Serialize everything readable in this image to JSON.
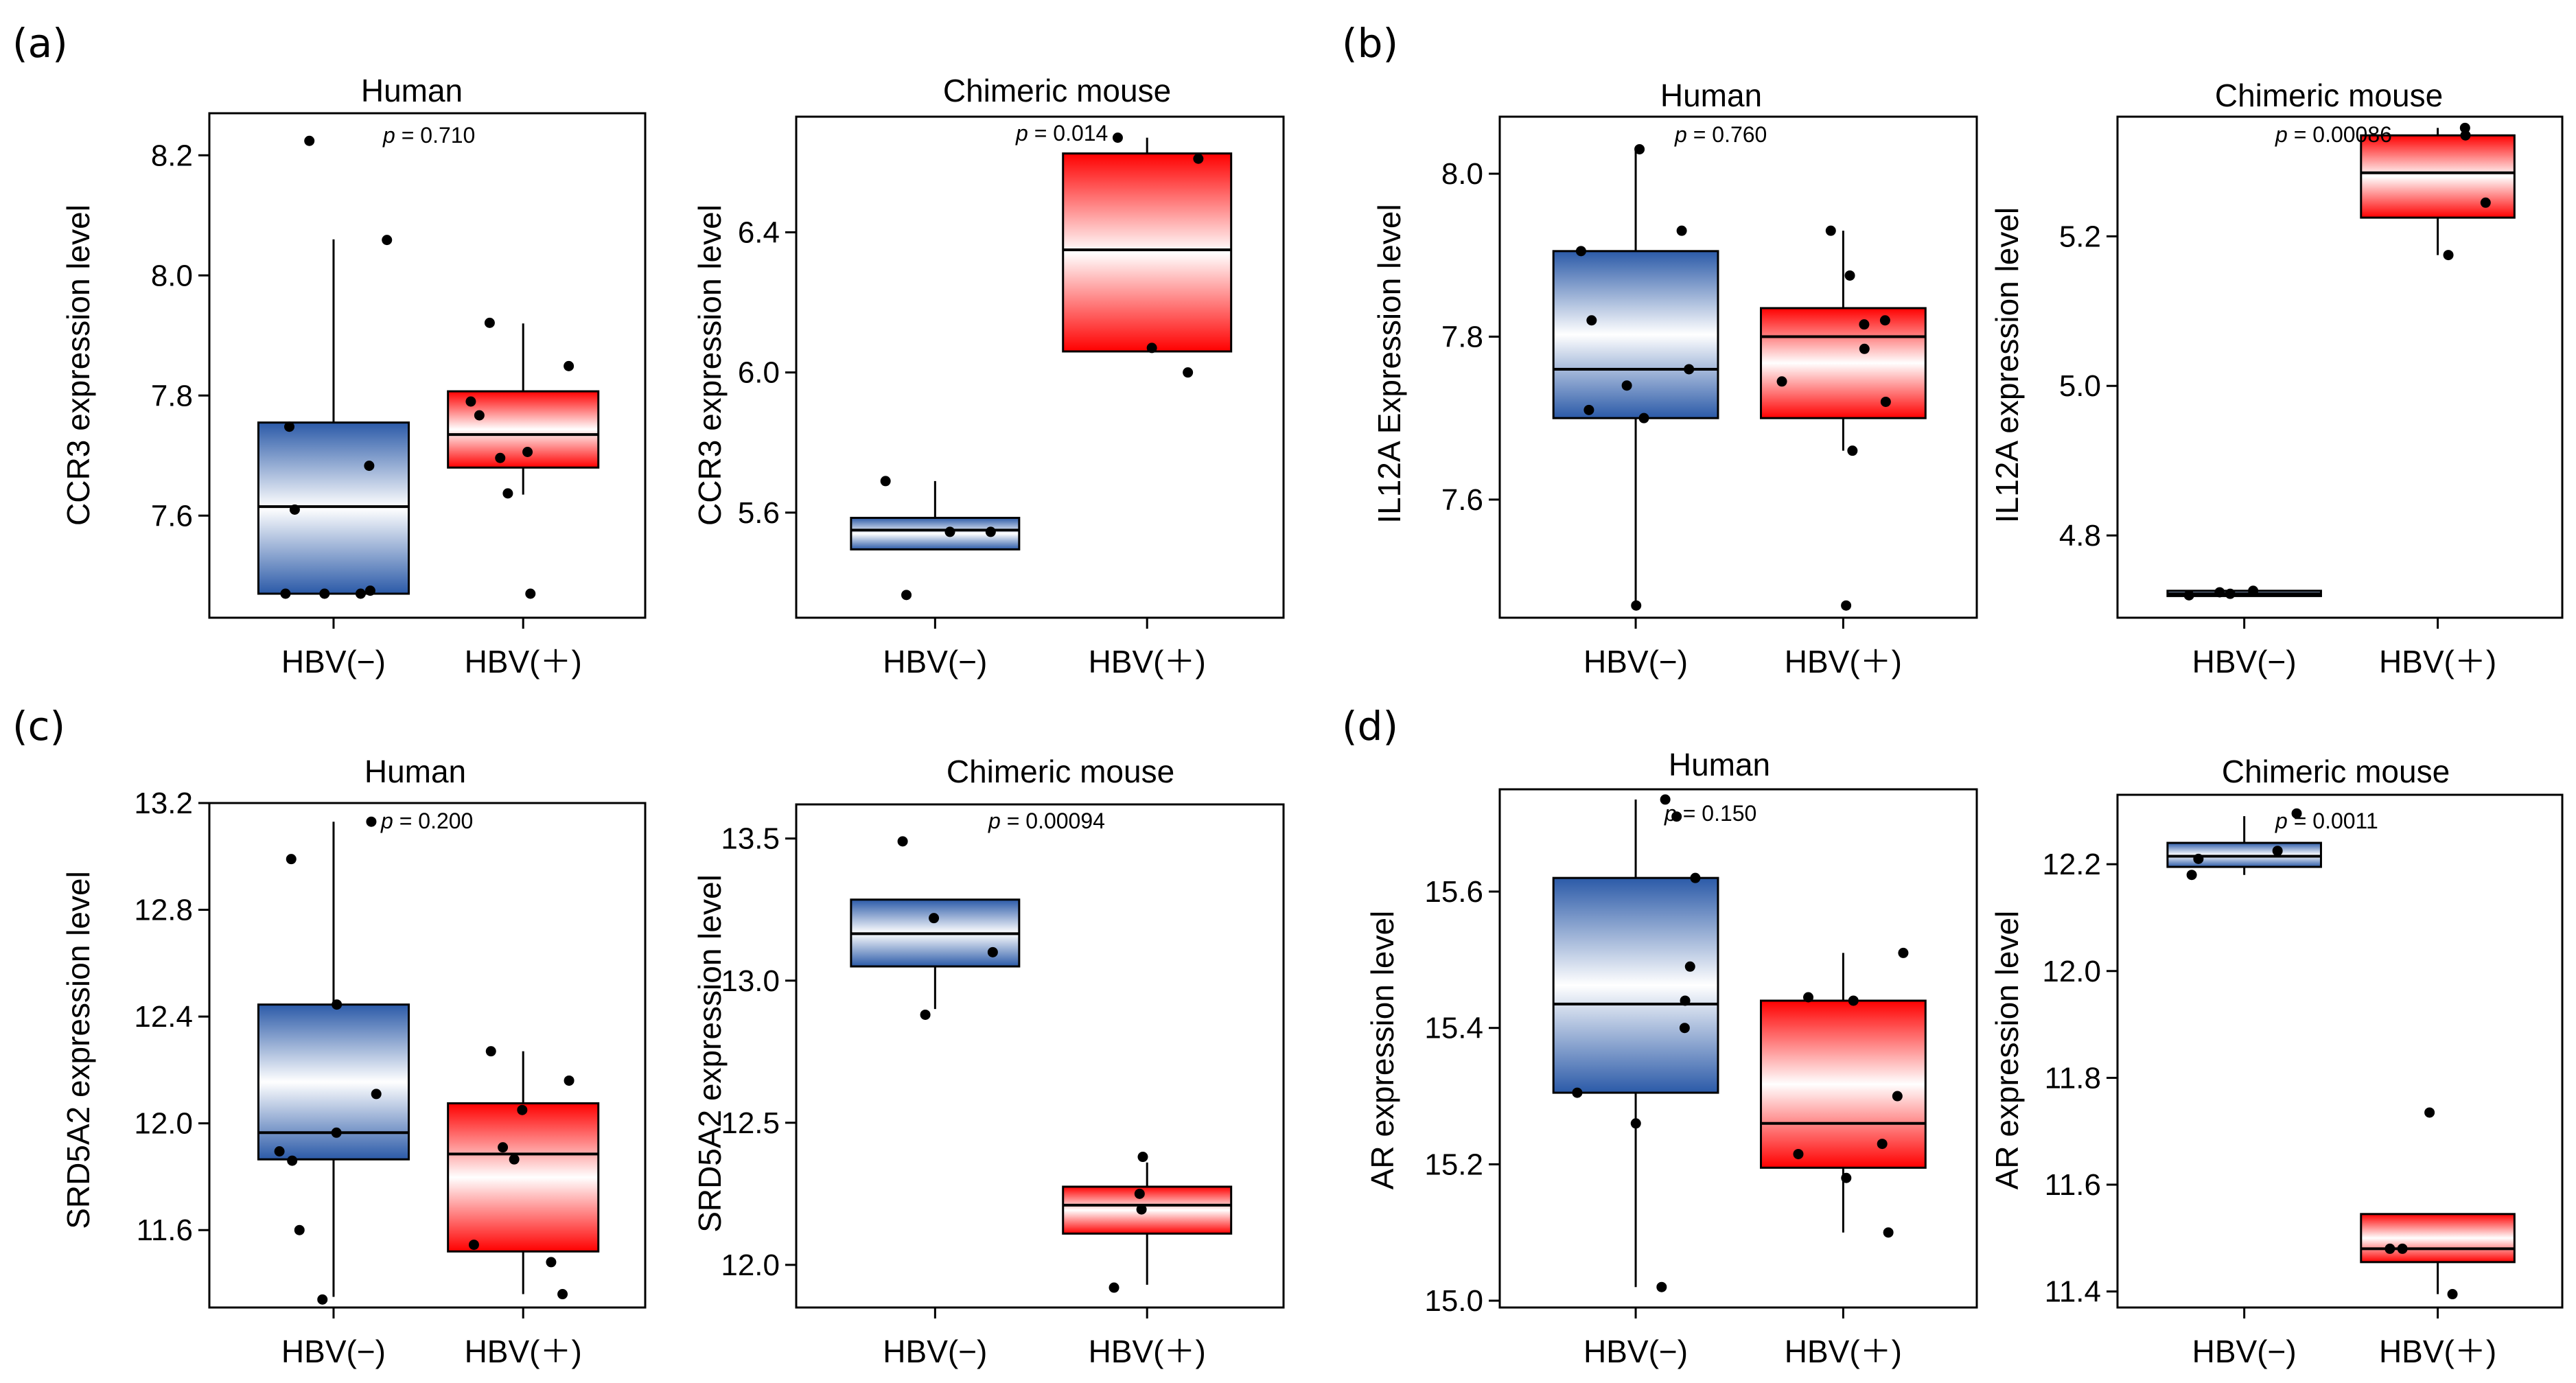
{
  "colors": {
    "negative_box_edge": "#2B5AA8",
    "negative_box_center": "#FFFFFF",
    "positive_box_edge": "#FF0000",
    "positive_box_center": "#FFFFFF",
    "axis": "#000000",
    "points": "#000000"
  },
  "chart_data": [
    {
      "id": "a_human",
      "panel": "(a)",
      "type": "boxplot",
      "title": "Human",
      "ylabel": "CCR3 expression level",
      "categories": [
        "HBV(−)",
        "HBV(＋)"
      ],
      "ylim": [
        7.43,
        8.27
      ],
      "yticks": [
        7.6,
        7.8,
        8.0,
        8.2
      ],
      "ytick_labels": [
        "7.6",
        "7.8",
        "8.0",
        "8.2"
      ],
      "p_label": "p",
      "p_text": " = 0.710",
      "series": [
        {
          "name": "HBV(−)",
          "q1": 7.47,
          "median": 7.615,
          "q3": 7.755,
          "whisker_low": 7.47,
          "whisker_high": 8.06,
          "points": [
            7.47,
            7.47,
            7.47,
            7.475,
            7.61,
            7.683,
            7.748,
            8.059,
            8.224
          ]
        },
        {
          "name": "HBV(＋)",
          "q1": 7.68,
          "median": 7.735,
          "q3": 7.807,
          "whisker_low": 7.635,
          "whisker_high": 7.92,
          "points": [
            7.47,
            7.637,
            7.696,
            7.706,
            7.767,
            7.79,
            7.849,
            7.921
          ]
        }
      ]
    },
    {
      "id": "a_mouse",
      "panel": "",
      "type": "boxplot",
      "title": "Chimeric mouse",
      "ylabel": "CCR3 expression level",
      "categories": [
        "HBV(−)",
        "HBV(＋)"
      ],
      "ylim": [
        5.3,
        6.73
      ],
      "yticks": [
        5.6,
        6.0,
        6.4
      ],
      "ytick_labels": [
        "5.6",
        "6.0",
        "6.4"
      ],
      "p_label": "p",
      "p_text": " = 0.014",
      "series": [
        {
          "name": "HBV(−)",
          "q1": 5.495,
          "median": 5.55,
          "q3": 5.585,
          "whisker_low": 5.495,
          "whisker_high": 5.69,
          "points": [
            5.365,
            5.545,
            5.545,
            5.69
          ]
        },
        {
          "name": "HBV(＋)",
          "q1": 6.06,
          "median": 6.35,
          "q3": 6.625,
          "whisker_low": 6.06,
          "whisker_high": 6.67,
          "points": [
            6.0,
            6.07,
            6.61,
            6.67
          ]
        }
      ]
    },
    {
      "id": "b_human",
      "panel": "(b)",
      "type": "boxplot",
      "title": "Human",
      "ylabel": "IL12A Expression level",
      "categories": [
        "HBV(−)",
        "HBV(＋)"
      ],
      "ylim": [
        7.455,
        8.07
      ],
      "yticks": [
        7.6,
        7.8,
        8.0
      ],
      "ytick_labels": [
        "7.6",
        "7.8",
        "8.0"
      ],
      "p_label": "p",
      "p_text": " = 0.760",
      "series": [
        {
          "name": "HBV(−)",
          "q1": 7.7,
          "median": 7.76,
          "q3": 7.905,
          "whisker_low": 7.47,
          "whisker_high": 8.03,
          "points": [
            7.47,
            7.7,
            7.71,
            7.74,
            7.76,
            7.82,
            7.905,
            7.93,
            8.03
          ]
        },
        {
          "name": "HBV(＋)",
          "q1": 7.7,
          "median": 7.8,
          "q3": 7.835,
          "whisker_low": 7.66,
          "whisker_high": 7.93,
          "points": [
            7.47,
            7.66,
            7.72,
            7.745,
            7.785,
            7.815,
            7.82,
            7.875,
            7.93
          ]
        }
      ]
    },
    {
      "id": "b_mouse",
      "panel": "",
      "type": "boxplot",
      "title": "Chimeric mouse",
      "ylabel": "IL12A expression level",
      "categories": [
        "HBV(−)",
        "HBV(＋)"
      ],
      "ylim": [
        4.69,
        5.36
      ],
      "yticks": [
        4.8,
        5.0,
        5.2
      ],
      "ytick_labels": [
        "4.8",
        "5.0",
        "5.2"
      ],
      "p_label": "p",
      "p_text": " = 0.00086",
      "series": [
        {
          "name": "HBV(−)",
          "q1": 4.719,
          "median": 4.722,
          "q3": 4.726,
          "whisker_low": 4.719,
          "whisker_high": 4.726,
          "points": [
            4.72,
            4.722,
            4.724,
            4.726
          ]
        },
        {
          "name": "HBV(＋)",
          "q1": 5.225,
          "median": 5.285,
          "q3": 5.335,
          "whisker_low": 5.175,
          "whisker_high": 5.345,
          "points": [
            5.175,
            5.245,
            5.335,
            5.345
          ]
        }
      ]
    },
    {
      "id": "c_human",
      "panel": "(c)",
      "type": "boxplot",
      "title": "Human",
      "ylabel": "SRD5A2 expression level",
      "categories": [
        "HBV(−)",
        "HBV(＋)"
      ],
      "ylim": [
        11.31,
        13.2
      ],
      "yticks": [
        11.6,
        12.0,
        12.4,
        12.8,
        13.2
      ],
      "ytick_labels": [
        "11.6",
        "12.0",
        "12.4",
        "12.8",
        "13.2"
      ],
      "p_label": "p",
      "p_text": " = 0.200",
      "series": [
        {
          "name": "HBV(−)",
          "q1": 11.865,
          "median": 11.965,
          "q3": 12.445,
          "whisker_low": 11.35,
          "whisker_high": 13.13,
          "points": [
            11.34,
            11.6,
            11.86,
            11.895,
            11.965,
            12.11,
            12.445,
            12.99,
            13.13
          ]
        },
        {
          "name": "HBV(＋)",
          "q1": 11.52,
          "median": 11.885,
          "q3": 12.075,
          "whisker_low": 11.36,
          "whisker_high": 12.27,
          "points": [
            11.36,
            11.48,
            11.545,
            11.865,
            11.91,
            12.05,
            12.16,
            12.27
          ]
        }
      ]
    },
    {
      "id": "c_mouse",
      "panel": "",
      "type": "boxplot",
      "title": "Chimeric mouse",
      "ylabel": "SRD5A2 expression level",
      "categories": [
        "HBV(−)",
        "HBV(＋)"
      ],
      "ylim": [
        11.85,
        13.62
      ],
      "yticks": [
        12.0,
        12.5,
        13.0,
        13.5
      ],
      "ytick_labels": [
        "12.0",
        "12.5",
        "13.0",
        "13.5"
      ],
      "p_label": "p",
      "p_text": " = 0.00094",
      "series": [
        {
          "name": "HBV(−)",
          "q1": 13.05,
          "median": 13.165,
          "q3": 13.285,
          "whisker_low": 12.9,
          "whisker_high": 13.285,
          "points": [
            12.88,
            13.1,
            13.22,
            13.49
          ]
        },
        {
          "name": "HBV(＋)",
          "q1": 12.11,
          "median": 12.21,
          "q3": 12.275,
          "whisker_low": 11.93,
          "whisker_high": 12.36,
          "points": [
            11.92,
            12.195,
            12.25,
            12.38
          ]
        }
      ]
    },
    {
      "id": "d_human",
      "panel": "(d)",
      "type": "boxplot",
      "title": "Human",
      "ylabel": "AR expression level",
      "categories": [
        "HBV(−)",
        "HBV(＋)"
      ],
      "ylim": [
        14.99,
        15.75
      ],
      "yticks": [
        15.0,
        15.2,
        15.4,
        15.6
      ],
      "ytick_labels": [
        "15.0",
        "15.2",
        "15.4",
        "15.6"
      ],
      "p_label": "p",
      "p_text": " = 0.150",
      "series": [
        {
          "name": "HBV(−)",
          "q1": 15.305,
          "median": 15.435,
          "q3": 15.62,
          "whisker_low": 15.02,
          "whisker_high": 15.735,
          "points": [
            15.02,
            15.26,
            15.305,
            15.4,
            15.44,
            15.49,
            15.62,
            15.71,
            15.735
          ]
        },
        {
          "name": "HBV(＋)",
          "q1": 15.195,
          "median": 15.26,
          "q3": 15.44,
          "whisker_low": 15.1,
          "whisker_high": 15.51,
          "points": [
            15.1,
            15.18,
            15.215,
            15.23,
            15.3,
            15.44,
            15.445,
            15.51
          ]
        }
      ]
    },
    {
      "id": "d_mouse",
      "panel": "",
      "type": "boxplot",
      "title": "Chimeric mouse",
      "ylabel": "AR expression level",
      "categories": [
        "HBV(−)",
        "HBV(＋)"
      ],
      "ylim": [
        11.37,
        12.33
      ],
      "yticks": [
        11.4,
        11.6,
        11.8,
        12.0,
        12.2
      ],
      "ytick_labels": [
        "11.4",
        "11.6",
        "11.8",
        "12.0",
        "12.2"
      ],
      "p_label": "p",
      "p_text": " = 0.0011",
      "series": [
        {
          "name": "HBV(−)",
          "q1": 12.195,
          "median": 12.215,
          "q3": 12.24,
          "whisker_low": 12.18,
          "whisker_high": 12.29,
          "points": [
            12.18,
            12.21,
            12.225,
            12.295
          ]
        },
        {
          "name": "HBV(＋)",
          "q1": 11.455,
          "median": 11.48,
          "q3": 11.545,
          "whisker_low": 11.395,
          "whisker_high": 11.545,
          "points": [
            11.395,
            11.48,
            11.48,
            11.735
          ]
        }
      ]
    }
  ]
}
